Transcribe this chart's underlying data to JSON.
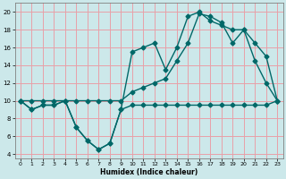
{
  "bg_color": "#cce8ea",
  "grid_color": "#e8a0a8",
  "line_color": "#006868",
  "xlabel": "Humidex (Indice chaleur)",
  "xlim": [
    -0.5,
    23.5
  ],
  "ylim": [
    3.5,
    21.0
  ],
  "yticks": [
    4,
    6,
    8,
    10,
    12,
    14,
    16,
    18,
    20
  ],
  "xticks": [
    0,
    1,
    2,
    3,
    4,
    5,
    6,
    7,
    8,
    9,
    10,
    11,
    12,
    13,
    14,
    15,
    16,
    17,
    18,
    19,
    20,
    21,
    22,
    23
  ],
  "line_wavy_x": [
    0,
    1,
    2,
    3,
    4,
    5,
    6,
    7,
    8,
    9,
    10,
    11,
    12,
    13,
    14,
    15,
    16,
    17,
    18,
    19,
    20,
    21,
    22,
    23
  ],
  "line_wavy_y": [
    10,
    9,
    9.5,
    9.5,
    10,
    7.0,
    5.5,
    4.5,
    5.2,
    9.0,
    9.5,
    9.5,
    9.5,
    9.5,
    9.5,
    9.5,
    9.5,
    9.5,
    9.5,
    9.5,
    9.5,
    9.5,
    9.5,
    10
  ],
  "line_steep_x": [
    0,
    1,
    2,
    3,
    4,
    5,
    6,
    7,
    8,
    9,
    10,
    11,
    12,
    13,
    14,
    15,
    16,
    17,
    18,
    19,
    20,
    21,
    22,
    23
  ],
  "line_steep_y": [
    10,
    9,
    9.5,
    9.5,
    10,
    7.0,
    5.5,
    4.5,
    5.2,
    9.0,
    15.5,
    16.0,
    16.5,
    13.5,
    16.0,
    19.5,
    20.0,
    19.0,
    18.5,
    18.0,
    18.0,
    14.5,
    12.0,
    10
  ],
  "line_diagonal_x": [
    0,
    1,
    2,
    3,
    4,
    5,
    6,
    7,
    8,
    9,
    10,
    11,
    12,
    13,
    14,
    15,
    16,
    17,
    18,
    19,
    20,
    21,
    22,
    23
  ],
  "line_diagonal_y": [
    10,
    10,
    10,
    10,
    10,
    10,
    10,
    10,
    10,
    10,
    11.0,
    11.5,
    12.0,
    12.5,
    14.5,
    16.5,
    19.8,
    19.5,
    18.8,
    16.5,
    18.0,
    16.5,
    15.0,
    10.0
  ]
}
